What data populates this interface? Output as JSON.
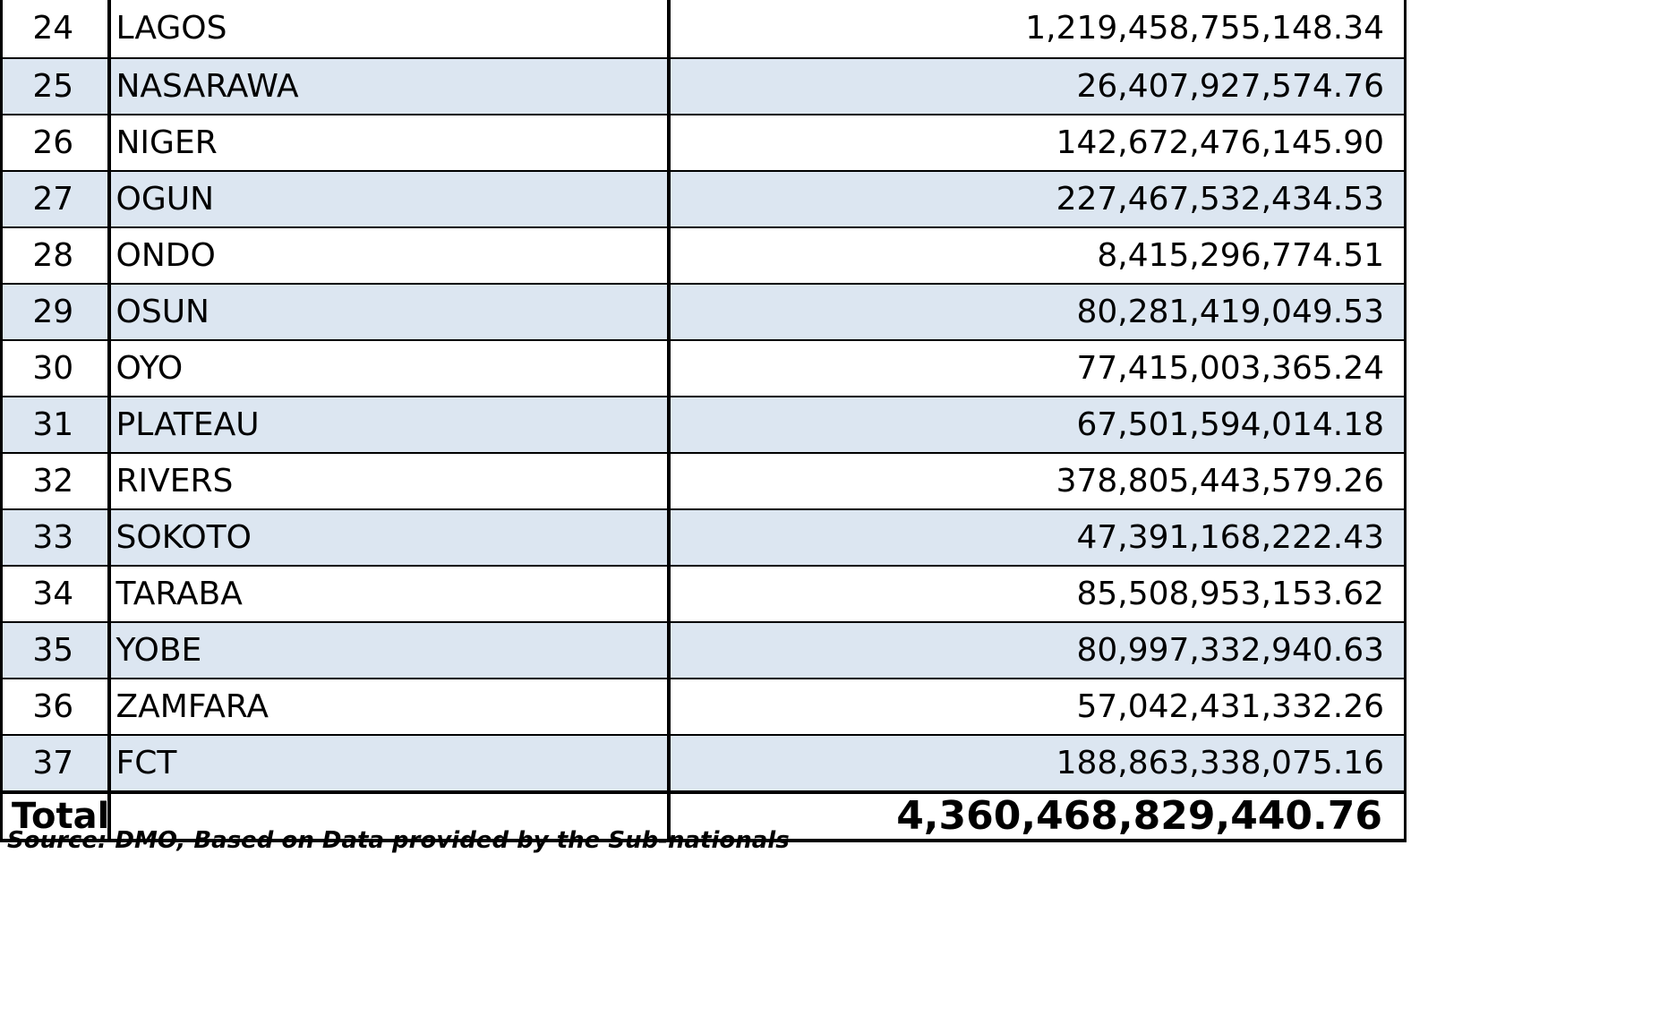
{
  "table": {
    "rows": [
      {
        "sn": "24",
        "state": "LAGOS",
        "amount": "1,219,458,755,148.34"
      },
      {
        "sn": "25",
        "state": "NASARAWA",
        "amount": "26,407,927,574.76"
      },
      {
        "sn": "26",
        "state": "NIGER",
        "amount": "142,672,476,145.90"
      },
      {
        "sn": "27",
        "state": "OGUN",
        "amount": "227,467,532,434.53"
      },
      {
        "sn": "28",
        "state": "ONDO",
        "amount": "8,415,296,774.51"
      },
      {
        "sn": "29",
        "state": "OSUN",
        "amount": "80,281,419,049.53"
      },
      {
        "sn": "30",
        "state": "OYO",
        "amount": "77,415,003,365.24"
      },
      {
        "sn": "31",
        "state": "PLATEAU",
        "amount": "67,501,594,014.18"
      },
      {
        "sn": "32",
        "state": "RIVERS",
        "amount": "378,805,443,579.26"
      },
      {
        "sn": "33",
        "state": "SOKOTO",
        "amount": "47,391,168,222.43"
      },
      {
        "sn": "34",
        "state": "TARABA",
        "amount": "85,508,953,153.62"
      },
      {
        "sn": "35",
        "state": "YOBE",
        "amount": "80,997,332,940.63"
      },
      {
        "sn": "36",
        "state": "ZAMFARA",
        "amount": "57,042,431,332.26"
      },
      {
        "sn": "37",
        "state": "FCT",
        "amount": "188,863,338,075.16"
      }
    ],
    "total": {
      "label": "Total",
      "state": "",
      "amount": "4,360,468,829,440.76"
    }
  },
  "footer": {
    "source": "Source: DMO, Based on Data provided by the Sub-nationals"
  },
  "colors": {
    "row_alt_background": "#dce6f1",
    "row_background": "#ffffff",
    "border": "#000000"
  }
}
